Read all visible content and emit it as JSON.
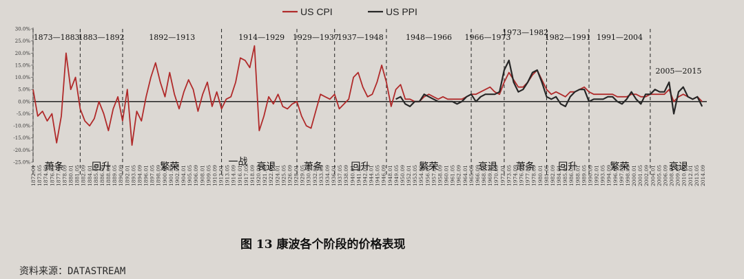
{
  "chart_data": {
    "type": "line",
    "title": "",
    "caption": "图 13   康波各个阶段的价格表现",
    "source": "资料来源：DATASTREAM",
    "ylim": [
      -25,
      30
    ],
    "y_ticks": [
      "30.0%",
      "25.0%",
      "20.0%",
      "15.0%",
      "10.0%",
      "5.0%",
      "0.0%",
      "-5.0%",
      "-10.0%",
      "-15.0%",
      "-20.0%",
      "-25.0%"
    ],
    "y_tick_values": [
      30,
      25,
      20,
      15,
      10,
      5,
      0,
      -5,
      -10,
      -15,
      -20,
      -25
    ],
    "x_range": [
      1873,
      2016
    ],
    "x_ticks": [
      "1872.01",
      "1873.05",
      "1874.09",
      "1876.01",
      "1877.05",
      "1878.09",
      "1880.01",
      "1881.05",
      "1882.09",
      "1884.01",
      "1885.05",
      "1886.09",
      "1888.01",
      "1889.05",
      "1890.09",
      "1892.01",
      "1893.05",
      "1894.09",
      "1896.01",
      "1897.05",
      "1898.09",
      "1900.01",
      "1901.05",
      "1902.09",
      "1904.01",
      "1905.05",
      "1906.09",
      "1908.01",
      "1909.05",
      "1910.09",
      "1912.01",
      "1913.05",
      "1914.09",
      "1916.01",
      "1917.05",
      "1918.09",
      "1920.01",
      "1921.05",
      "1922.09",
      "1924.01",
      "1925.05",
      "1926.09",
      "1928.01",
      "1929.05",
      "1930.09",
      "1932.01",
      "1933.05",
      "1934.09",
      "1936.01",
      "1937.05",
      "1938.09",
      "1940.01",
      "1941.05",
      "1942.09",
      "1944.01",
      "1945.05",
      "1946.09",
      "1948.01",
      "1949.05",
      "1950.09",
      "1952.01",
      "1953.05",
      "1954.09",
      "1956.01",
      "1957.05",
      "1958.09",
      "1960.01",
      "1961.05",
      "1962.09",
      "1964.01",
      "1965.05",
      "1966.09",
      "1968.01",
      "1969.05",
      "1970.09",
      "1972.01",
      "1973.05",
      "1974.09",
      "1976.01",
      "1977.05",
      "1978.09",
      "1980.01",
      "1981.05",
      "1982.09",
      "1984.01",
      "1985.05",
      "1986.09",
      "1988.01",
      "1989.05",
      "1990.09",
      "1992.01",
      "1993.05",
      "1994.09",
      "1996.01",
      "1997.05",
      "1998.09",
      "2000.01",
      "2001.05",
      "2002.09",
      "2004.01",
      "2005.05",
      "2006.09",
      "2008.01",
      "2009.05",
      "2010.09",
      "2012.01",
      "2013.05",
      "2014.09"
    ],
    "legend_position": "top-center",
    "series": [
      {
        "name": "US CPI",
        "color": "#b02a2a",
        "points": [
          [
            1873,
            5
          ],
          [
            1874,
            -6
          ],
          [
            1875,
            -4
          ],
          [
            1876,
            -8
          ],
          [
            1877,
            -5
          ],
          [
            1878,
            -17
          ],
          [
            1879,
            -6
          ],
          [
            1880,
            20
          ],
          [
            1881,
            5
          ],
          [
            1882,
            10
          ],
          [
            1883,
            -3
          ],
          [
            1884,
            -8
          ],
          [
            1885,
            -10
          ],
          [
            1886,
            -7
          ],
          [
            1887,
            0
          ],
          [
            1888,
            -5
          ],
          [
            1889,
            -12
          ],
          [
            1890,
            -3
          ],
          [
            1891,
            2
          ],
          [
            1892,
            -8
          ],
          [
            1893,
            5
          ],
          [
            1894,
            -18
          ],
          [
            1895,
            -4
          ],
          [
            1896,
            -8
          ],
          [
            1897,
            2
          ],
          [
            1898,
            10
          ],
          [
            1899,
            16
          ],
          [
            1900,
            8
          ],
          [
            1901,
            2
          ],
          [
            1902,
            12
          ],
          [
            1903,
            3
          ],
          [
            1904,
            -3
          ],
          [
            1905,
            4
          ],
          [
            1906,
            9
          ],
          [
            1907,
            5
          ],
          [
            1908,
            -4
          ],
          [
            1909,
            3
          ],
          [
            1910,
            8
          ],
          [
            1911,
            -2
          ],
          [
            1912,
            4
          ],
          [
            1913,
            -3
          ],
          [
            1914,
            1
          ],
          [
            1915,
            2
          ],
          [
            1916,
            8
          ],
          [
            1917,
            18
          ],
          [
            1918,
            17
          ],
          [
            1919,
            14
          ],
          [
            1920,
            23
          ],
          [
            1921,
            -12
          ],
          [
            1922,
            -6
          ],
          [
            1923,
            2
          ],
          [
            1924,
            -1
          ],
          [
            1925,
            3
          ],
          [
            1926,
            -2
          ],
          [
            1927,
            -3
          ],
          [
            1928,
            -1
          ],
          [
            1929,
            0
          ],
          [
            1930,
            -6
          ],
          [
            1931,
            -10
          ],
          [
            1932,
            -11
          ],
          [
            1933,
            -4
          ],
          [
            1934,
            3
          ],
          [
            1935,
            2
          ],
          [
            1936,
            1
          ],
          [
            1937,
            3
          ],
          [
            1938,
            -3
          ],
          [
            1939,
            -1
          ],
          [
            1940,
            1
          ],
          [
            1941,
            10
          ],
          [
            1942,
            12
          ],
          [
            1943,
            6
          ],
          [
            1944,
            2
          ],
          [
            1945,
            3
          ],
          [
            1946,
            8
          ],
          [
            1947,
            15
          ],
          [
            1948,
            8
          ],
          [
            1949,
            -2
          ],
          [
            1950,
            5
          ],
          [
            1951,
            7
          ],
          [
            1952,
            1
          ],
          [
            1953,
            1
          ],
          [
            1954,
            0
          ],
          [
            1955,
            0
          ],
          [
            1956,
            2
          ],
          [
            1957,
            3
          ],
          [
            1958,
            2
          ],
          [
            1959,
            1
          ],
          [
            1960,
            2
          ],
          [
            1961,
            1
          ],
          [
            1962,
            1
          ],
          [
            1963,
            1
          ],
          [
            1964,
            1
          ],
          [
            1965,
            2
          ],
          [
            1966,
            3
          ],
          [
            1967,
            3
          ],
          [
            1968,
            4
          ],
          [
            1969,
            5
          ],
          [
            1970,
            6
          ],
          [
            1971,
            4
          ],
          [
            1972,
            3
          ],
          [
            1973,
            8
          ],
          [
            1974,
            12
          ],
          [
            1975,
            9
          ],
          [
            1976,
            6
          ],
          [
            1977,
            6
          ],
          [
            1978,
            8
          ],
          [
            1979,
            11
          ],
          [
            1980,
            13
          ],
          [
            1981,
            9
          ],
          [
            1982,
            5
          ],
          [
            1983,
            3
          ],
          [
            1984,
            4
          ],
          [
            1985,
            3
          ],
          [
            1986,
            2
          ],
          [
            1987,
            4
          ],
          [
            1988,
            4
          ],
          [
            1989,
            5
          ],
          [
            1990,
            6
          ],
          [
            1991,
            4
          ],
          [
            1992,
            3
          ],
          [
            1993,
            3
          ],
          [
            1994,
            3
          ],
          [
            1995,
            3
          ],
          [
            1996,
            3
          ],
          [
            1997,
            2
          ],
          [
            1998,
            2
          ],
          [
            1999,
            2
          ],
          [
            2000,
            3
          ],
          [
            2001,
            3
          ],
          [
            2002,
            2
          ],
          [
            2003,
            2
          ],
          [
            2004,
            3
          ],
          [
            2005,
            3
          ],
          [
            2006,
            3
          ],
          [
            2007,
            3
          ],
          [
            2008,
            5
          ],
          [
            2009,
            0
          ],
          [
            2010,
            2
          ],
          [
            2011,
            3
          ],
          [
            2012,
            2
          ],
          [
            2013,
            1
          ],
          [
            2014,
            2
          ],
          [
            2015,
            0
          ]
        ]
      },
      {
        "name": "US PPI",
        "color": "#262626",
        "points": [
          [
            1950,
            1
          ],
          [
            1951,
            2
          ],
          [
            1952,
            -1
          ],
          [
            1953,
            -2
          ],
          [
            1954,
            0
          ],
          [
            1955,
            0
          ],
          [
            1956,
            3
          ],
          [
            1957,
            2
          ],
          [
            1958,
            1
          ],
          [
            1959,
            0
          ],
          [
            1960,
            0
          ],
          [
            1961,
            0
          ],
          [
            1962,
            0
          ],
          [
            1963,
            -1
          ],
          [
            1964,
            0
          ],
          [
            1965,
            2
          ],
          [
            1966,
            3
          ],
          [
            1967,
            0
          ],
          [
            1968,
            2
          ],
          [
            1969,
            3
          ],
          [
            1970,
            3
          ],
          [
            1971,
            3
          ],
          [
            1972,
            4
          ],
          [
            1973,
            13
          ],
          [
            1974,
            17
          ],
          [
            1975,
            8
          ],
          [
            1976,
            4
          ],
          [
            1977,
            5
          ],
          [
            1978,
            8
          ],
          [
            1979,
            12
          ],
          [
            1980,
            13
          ],
          [
            1981,
            8
          ],
          [
            1982,
            2
          ],
          [
            1983,
            1
          ],
          [
            1984,
            2
          ],
          [
            1985,
            -1
          ],
          [
            1986,
            -2
          ],
          [
            1987,
            2
          ],
          [
            1988,
            4
          ],
          [
            1989,
            5
          ],
          [
            1990,
            5
          ],
          [
            1991,
            0
          ],
          [
            1992,
            1
          ],
          [
            1993,
            1
          ],
          [
            1994,
            1
          ],
          [
            1995,
            2
          ],
          [
            1996,
            2
          ],
          [
            1997,
            0
          ],
          [
            1998,
            -1
          ],
          [
            1999,
            1
          ],
          [
            2000,
            4
          ],
          [
            2001,
            1
          ],
          [
            2002,
            -1
          ],
          [
            2003,
            3
          ],
          [
            2004,
            3
          ],
          [
            2005,
            5
          ],
          [
            2006,
            4
          ],
          [
            2007,
            4
          ],
          [
            2008,
            8
          ],
          [
            2009,
            -5
          ],
          [
            2010,
            4
          ],
          [
            2011,
            6
          ],
          [
            2012,
            2
          ],
          [
            2013,
            1
          ],
          [
            2014,
            2
          ],
          [
            2015,
            -2
          ]
        ]
      }
    ],
    "period_dividers": [
      1873,
      1883,
      1892,
      1913,
      1929,
      1937,
      1948,
      1966,
      1973,
      1982,
      1991,
      2004
    ],
    "period_labels": [
      {
        "text": "1873—1883",
        "x": 1878
      },
      {
        "text": "1883—1892",
        "x": 1887.5
      },
      {
        "text": "1892—1913",
        "x": 1902.5
      },
      {
        "text": "1914—1929",
        "x": 1921.5
      },
      {
        "text": "1929—1937",
        "x": 1933
      },
      {
        "text": "1937—1948",
        "x": 1942.5
      },
      {
        "text": "1948—1966",
        "x": 1957
      },
      {
        "text": "1966—1973",
        "x": 1969.5
      },
      {
        "text": "1973—1982",
        "x": 1977.5
      },
      {
        "text": "1982—1991",
        "x": 1986.5
      },
      {
        "text": "1991—2004",
        "x": 1997.5
      },
      {
        "text": "2005—2015",
        "x": 2010
      }
    ],
    "phase_labels": [
      {
        "text": "萧条",
        "x": 1877.5
      },
      {
        "text": "回升",
        "x": 1887.5
      },
      {
        "text": "繁荣",
        "x": 1902
      },
      {
        "text": "一战",
        "x": 1916.5
      },
      {
        "text": "衰退",
        "x": 1922.5
      },
      {
        "text": "萧条",
        "x": 1932.5
      },
      {
        "text": "回升",
        "x": 1942.5
      },
      {
        "text": "繁荣",
        "x": 1957
      },
      {
        "text": "衰退",
        "x": 1969.5
      },
      {
        "text": "萧条",
        "x": 1977.5
      },
      {
        "text": "回升",
        "x": 1986.5
      },
      {
        "text": "繁荣",
        "x": 1997.5
      },
      {
        "text": "衰退",
        "x": 2010
      }
    ]
  }
}
